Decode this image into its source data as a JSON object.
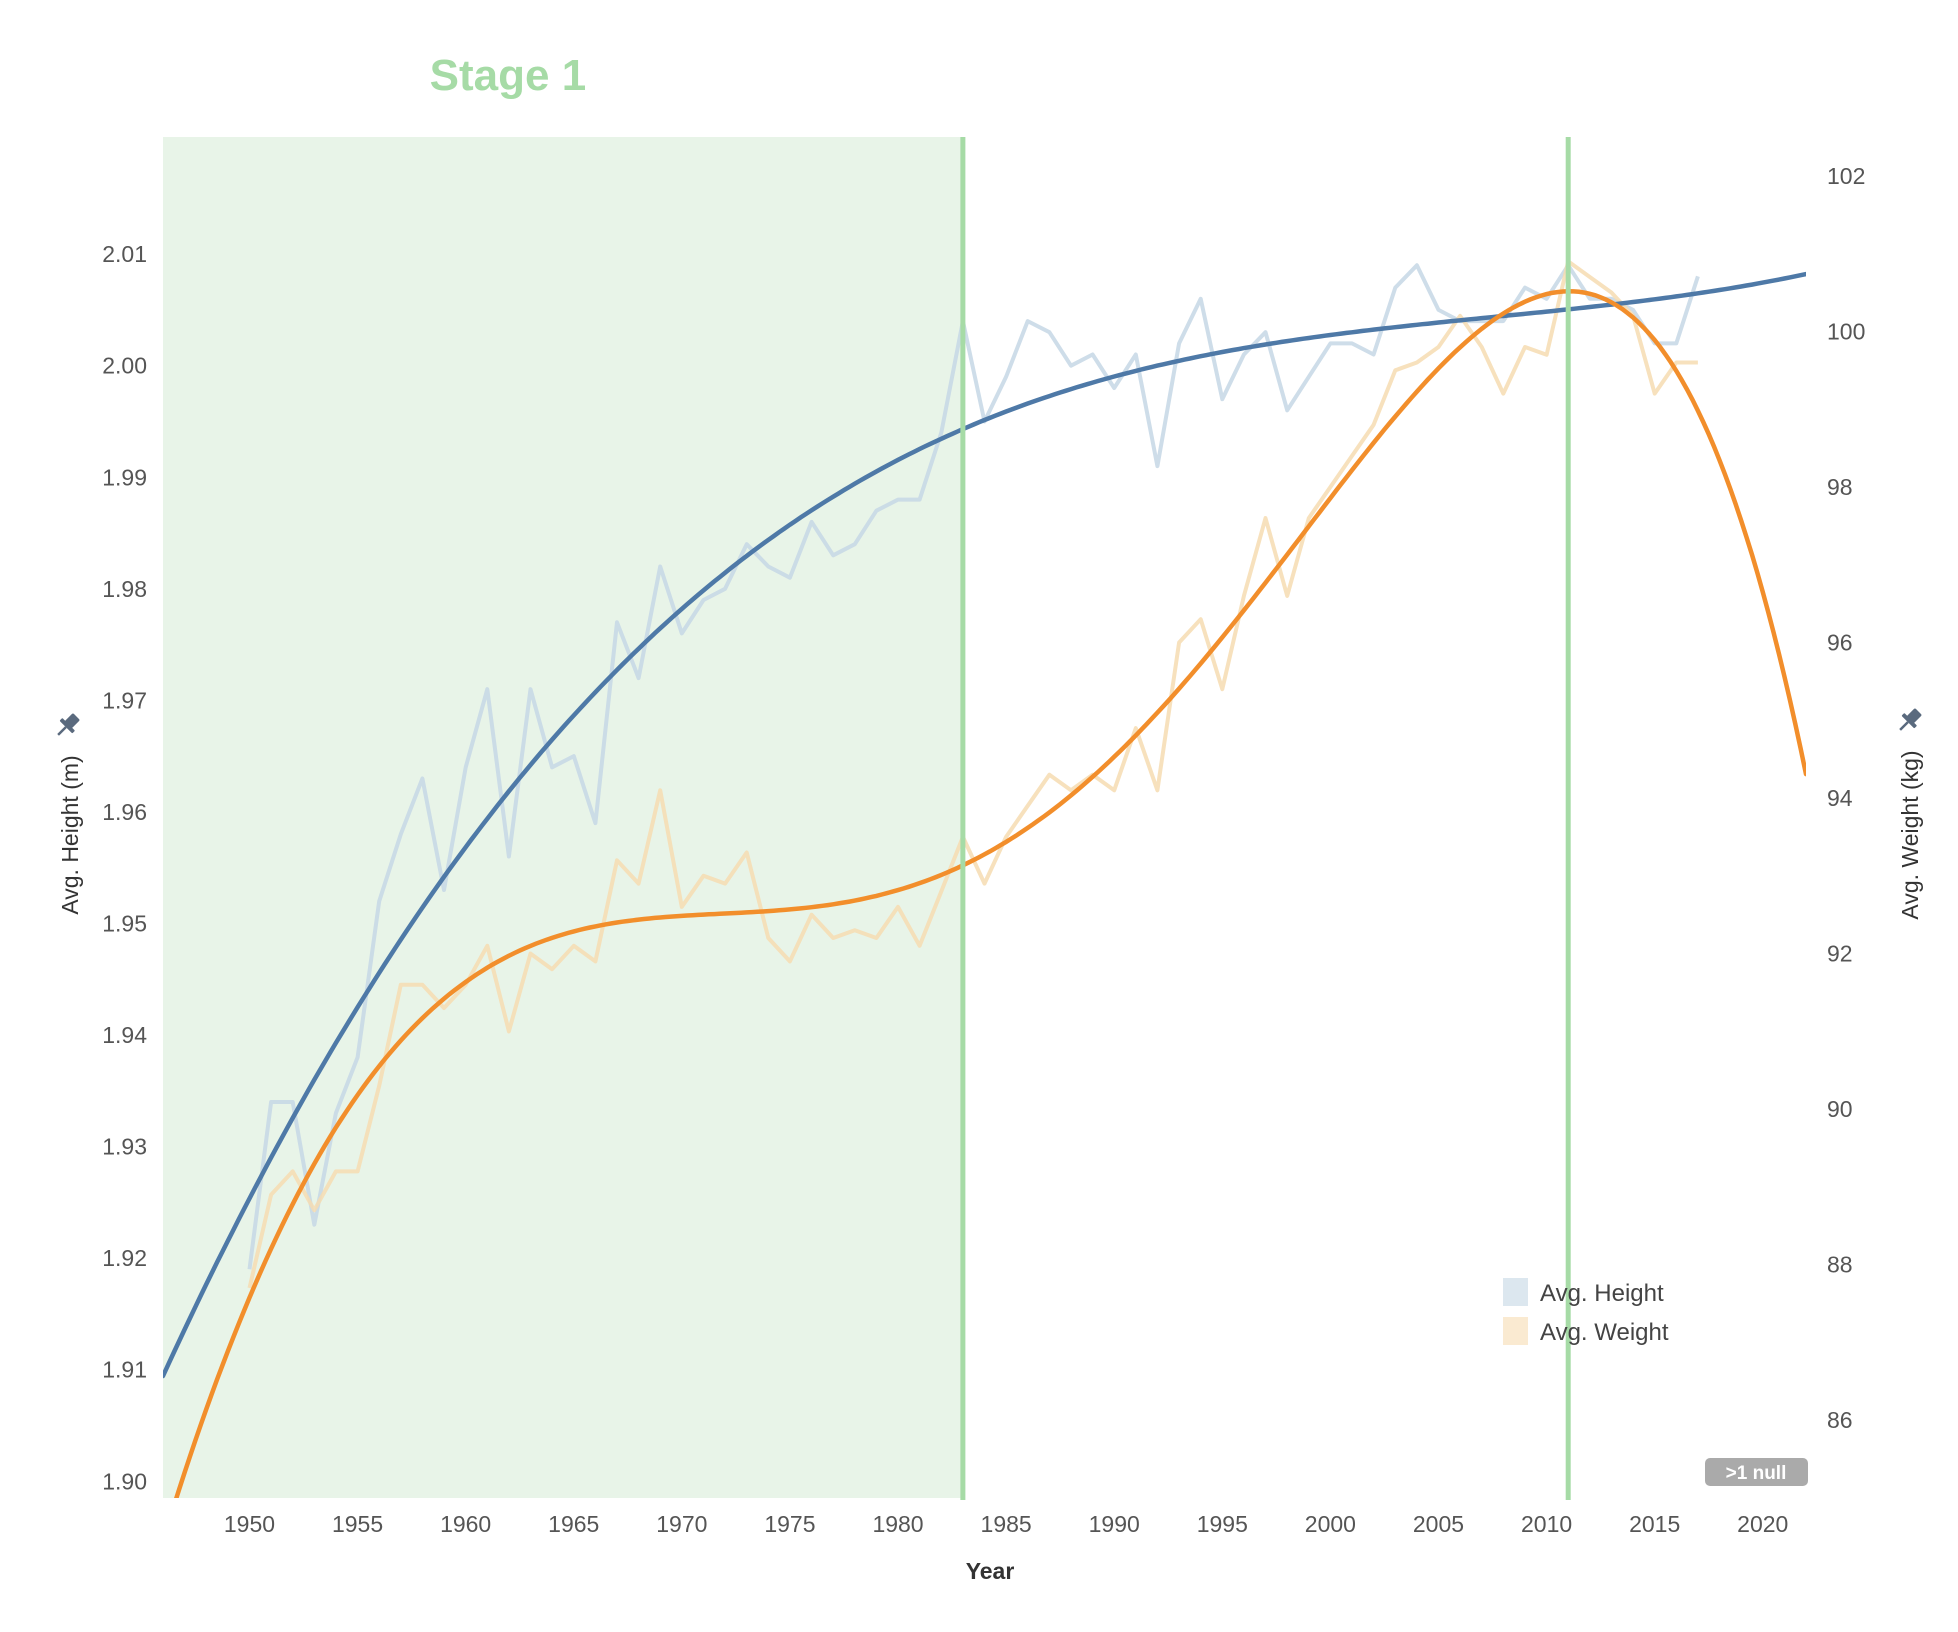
{
  "colors": {
    "height_raw": "#c5d7e5",
    "weight_raw": "#f6dcb2",
    "height_trend": "#4e79a7",
    "weight_trend": "#f28e2b",
    "stage_fill": "#e8f4e8",
    "stage_line": "#a6dba6",
    "stage_title": "#a6dba6",
    "null_badge": "#aaaaaa",
    "pin_icon": "#5a6a7e"
  },
  "stage": {
    "title": "Stage 1",
    "start_year": 1946,
    "end_year": 1983
  },
  "markers": {
    "vertical_lines": [
      1983,
      2011
    ]
  },
  "null_badge": ">1 null",
  "chart_data": {
    "type": "line",
    "x": [
      1950,
      1951,
      1952,
      1953,
      1954,
      1955,
      1956,
      1957,
      1958,
      1959,
      1960,
      1961,
      1962,
      1963,
      1964,
      1965,
      1966,
      1967,
      1968,
      1969,
      1970,
      1971,
      1972,
      1973,
      1974,
      1975,
      1976,
      1977,
      1978,
      1979,
      1980,
      1981,
      1982,
      1983,
      1984,
      1985,
      1986,
      1987,
      1988,
      1989,
      1990,
      1991,
      1992,
      1993,
      1994,
      1995,
      1996,
      1997,
      1998,
      1999,
      2000,
      2001,
      2002,
      2003,
      2004,
      2005,
      2006,
      2007,
      2008,
      2009,
      2010,
      2011,
      2012,
      2013,
      2014,
      2015,
      2016,
      2017
    ],
    "xlabel": "Year",
    "xlim": [
      1946,
      2022
    ],
    "xticks": [
      1950,
      1955,
      1960,
      1965,
      1970,
      1975,
      1980,
      1985,
      1990,
      1995,
      2000,
      2005,
      2010,
      2015,
      2020
    ],
    "left_axis": {
      "label": "Avg. Height (m)",
      "ylim": [
        1.8985,
        2.0205
      ],
      "ticks": [
        1.9,
        1.91,
        1.92,
        1.93,
        1.94,
        1.95,
        1.96,
        1.97,
        1.98,
        1.99,
        2.0,
        2.01
      ],
      "tick_labels": [
        "1.90",
        "1.91",
        "1.92",
        "1.93",
        "1.94",
        "1.95",
        "1.96",
        "1.97",
        "1.98",
        "1.99",
        "2.00",
        "2.01"
      ]
    },
    "right_axis": {
      "label": "Avg. Weight (kg)",
      "ylim": [
        85.0,
        102.5
      ],
      "ticks": [
        86,
        88,
        90,
        92,
        94,
        96,
        98,
        100,
        102
      ],
      "tick_labels": [
        "86",
        "88",
        "90",
        "92",
        "94",
        "96",
        "98",
        "100",
        "102"
      ]
    },
    "legend": {
      "position": "bottom-right",
      "entries": [
        "Avg. Height",
        "Avg. Weight"
      ]
    },
    "series": [
      {
        "name": "Avg. Height",
        "axis": "left",
        "values": [
          1.919,
          1.934,
          1.934,
          1.923,
          1.933,
          1.938,
          1.952,
          1.958,
          1.963,
          1.953,
          1.964,
          1.971,
          1.956,
          1.971,
          1.964,
          1.965,
          1.959,
          1.977,
          1.972,
          1.982,
          1.976,
          1.979,
          1.98,
          1.984,
          1.982,
          1.981,
          1.986,
          1.983,
          1.984,
          1.987,
          1.988,
          1.988,
          1.994,
          2.004,
          1.995,
          1.999,
          2.004,
          2.003,
          2.0,
          2.001,
          1.998,
          2.001,
          1.991,
          2.002,
          2.006,
          1.997,
          2.001,
          2.003,
          1.996,
          1.999,
          2.002,
          2.002,
          2.001,
          2.007,
          2.009,
          2.005,
          2.004,
          2.004,
          2.004,
          2.007,
          2.006,
          2.009,
          2.006,
          2.006,
          2.005,
          2.002,
          2.002,
          2.008
        ]
      },
      {
        "name": "Avg. Weight",
        "axis": "right",
        "values": [
          87.7,
          88.9,
          89.2,
          88.7,
          89.2,
          89.2,
          90.3,
          91.6,
          91.6,
          91.3,
          91.6,
          92.1,
          91.0,
          92.0,
          91.8,
          92.1,
          91.9,
          93.2,
          92.9,
          94.1,
          92.6,
          93.0,
          92.9,
          93.3,
          92.2,
          91.9,
          92.5,
          92.2,
          92.3,
          92.2,
          92.6,
          92.1,
          92.8,
          93.5,
          92.9,
          93.5,
          93.9,
          94.3,
          94.1,
          94.3,
          94.1,
          94.9,
          94.1,
          96.0,
          96.3,
          95.4,
          96.6,
          97.6,
          96.6,
          97.6,
          98.0,
          98.4,
          98.8,
          99.5,
          99.6,
          99.8,
          100.2,
          99.8,
          99.2,
          99.8,
          99.7,
          100.9,
          100.7,
          100.5,
          100.2,
          99.2,
          99.6,
          99.6
        ]
      }
    ]
  }
}
